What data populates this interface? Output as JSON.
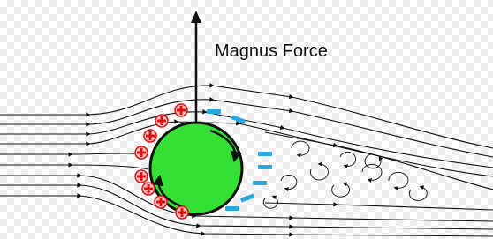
{
  "label": "Magnus Force"
}
